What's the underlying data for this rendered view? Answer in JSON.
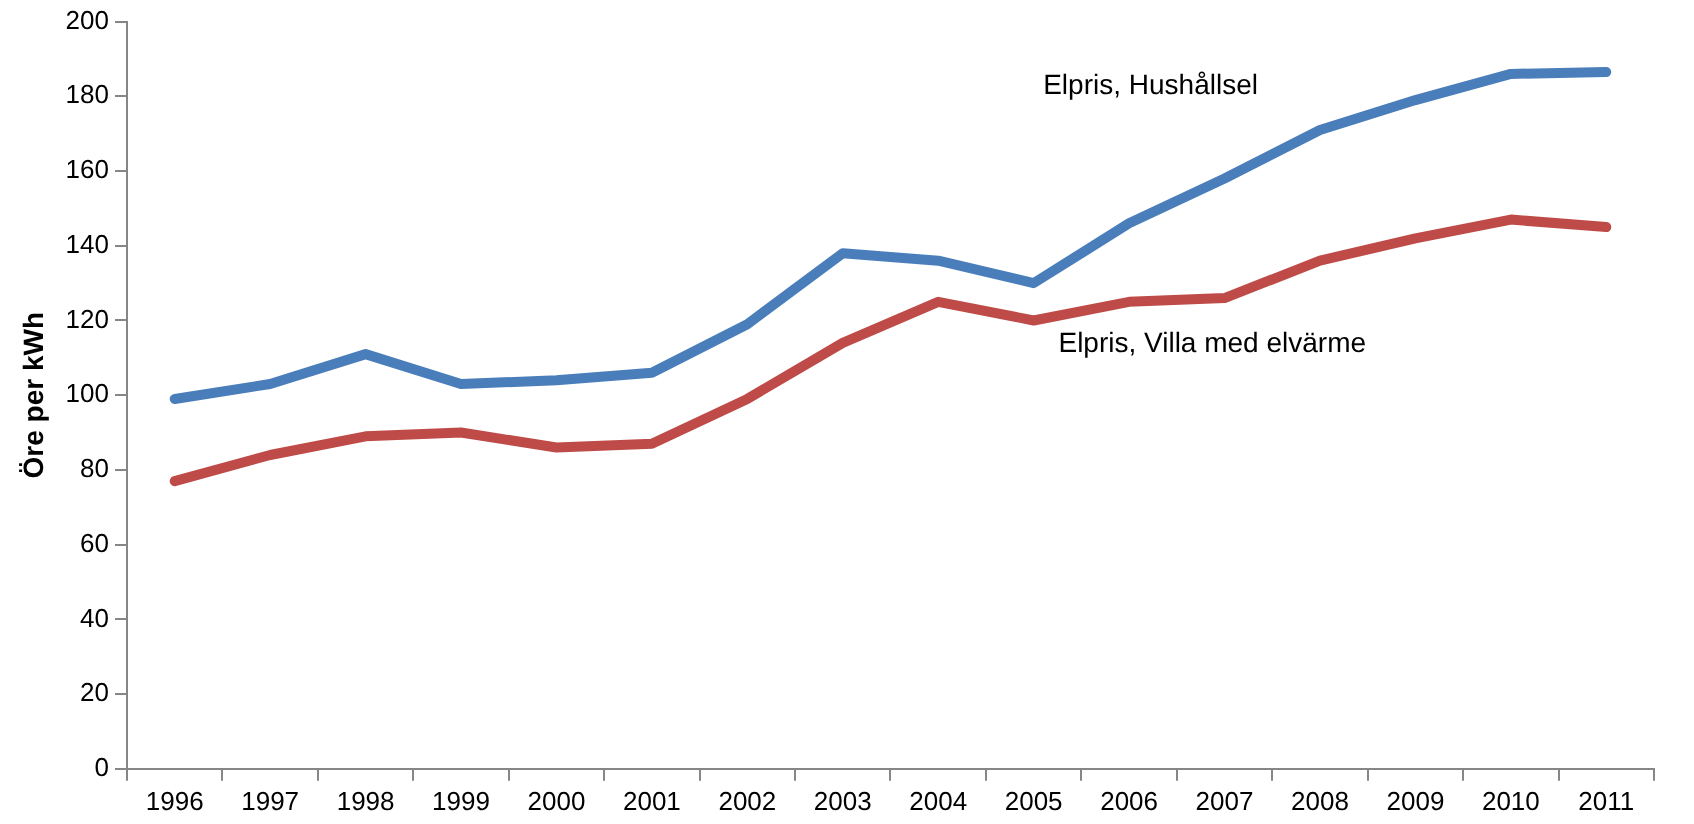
{
  "chart_data": {
    "type": "line",
    "ylabel": "Öre per kWh",
    "categories": [
      "1996",
      "1997",
      "1998",
      "1999",
      "2000",
      "2001",
      "2002",
      "2003",
      "2004",
      "2005",
      "2006",
      "2007",
      "2008",
      "2009",
      "2010",
      "2011"
    ],
    "series": [
      {
        "name": "Elpris, Hushållsel",
        "color": "#4a7ebb",
        "values": [
          99,
          103,
          111,
          103,
          104,
          106,
          119,
          138,
          136,
          130,
          146,
          158,
          171,
          179,
          186,
          186.5
        ]
      },
      {
        "name": "Elpris, Villa med elvärme",
        "color": "#be4b48",
        "values": [
          77,
          84,
          89,
          90,
          86,
          87,
          99,
          114,
          125,
          120,
          125,
          126,
          136,
          142,
          147,
          145
        ]
      }
    ],
    "ylim": [
      0,
      200
    ],
    "yticks": [
      0,
      20,
      40,
      60,
      80,
      100,
      120,
      140,
      160,
      180,
      200
    ],
    "grid": false,
    "legend": false,
    "marker": "none",
    "line_style": "solid"
  }
}
